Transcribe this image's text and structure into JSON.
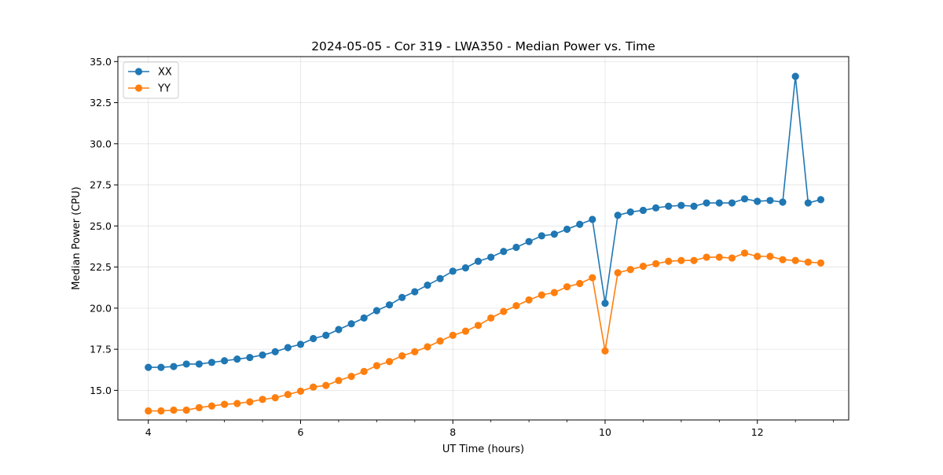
{
  "chart_data": {
    "type": "line",
    "title": "2024-05-05 - Cor 319 - LWA350 - Median Power vs. Time",
    "xlabel": "UT Time (hours)",
    "ylabel": "Median Power (CPU)",
    "xlim": [
      3.6,
      13.2
    ],
    "ylim": [
      13.2,
      35.3
    ],
    "xticks": [
      4,
      6,
      8,
      10,
      12
    ],
    "xtick_labels": [
      "4",
      "6",
      "8",
      "10",
      "12"
    ],
    "yticks": [
      15.0,
      17.5,
      20.0,
      22.5,
      25.0,
      27.5,
      30.0,
      32.5,
      35.0
    ],
    "ytick_labels": [
      "15.0",
      "17.5",
      "20.0",
      "22.5",
      "25.0",
      "27.5",
      "30.0",
      "32.5",
      "35.0"
    ],
    "grid": true,
    "legend_position": "top-left",
    "x": [
      4.0,
      4.167,
      4.333,
      4.5,
      4.667,
      4.833,
      5.0,
      5.167,
      5.333,
      5.5,
      5.667,
      5.833,
      6.0,
      6.167,
      6.333,
      6.5,
      6.667,
      6.833,
      7.0,
      7.167,
      7.333,
      7.5,
      7.667,
      7.833,
      8.0,
      8.167,
      8.333,
      8.5,
      8.667,
      8.833,
      9.0,
      9.167,
      9.333,
      9.5,
      9.667,
      9.833,
      10.0,
      10.167,
      10.333,
      10.5,
      10.667,
      10.833,
      11.0,
      11.167,
      11.333,
      11.5,
      11.667,
      11.833,
      12.0,
      12.167,
      12.333,
      12.5,
      12.667,
      12.833
    ],
    "series": [
      {
        "name": "XX",
        "color": "#1f77b4",
        "values": [
          16.4,
          16.4,
          16.45,
          16.6,
          16.6,
          16.7,
          16.8,
          16.9,
          17.0,
          17.15,
          17.35,
          17.6,
          17.8,
          18.15,
          18.35,
          18.7,
          19.05,
          19.4,
          19.85,
          20.2,
          20.65,
          21.0,
          21.4,
          21.8,
          22.25,
          22.45,
          22.85,
          23.1,
          23.45,
          23.7,
          24.05,
          24.4,
          24.5,
          24.8,
          25.1,
          25.4,
          20.3,
          25.65,
          25.85,
          25.95,
          26.1,
          26.2,
          26.25,
          26.2,
          26.4,
          26.4,
          26.4,
          26.65,
          26.5,
          26.55,
          26.45,
          34.1,
          26.4,
          26.6
        ]
      },
      {
        "name": "YY",
        "color": "#ff7f0e",
        "values": [
          13.75,
          13.75,
          13.8,
          13.8,
          13.95,
          14.05,
          14.15,
          14.2,
          14.3,
          14.45,
          14.55,
          14.75,
          14.95,
          15.2,
          15.3,
          15.6,
          15.85,
          16.15,
          16.5,
          16.75,
          17.1,
          17.35,
          17.65,
          18.0,
          18.35,
          18.6,
          18.95,
          19.4,
          19.8,
          20.15,
          20.5,
          20.8,
          20.95,
          21.3,
          21.5,
          21.85,
          17.4,
          22.15,
          22.35,
          22.55,
          22.7,
          22.85,
          22.9,
          22.9,
          23.1,
          23.1,
          23.05,
          23.35,
          23.15,
          23.15,
          22.95,
          22.9,
          22.8,
          22.75
        ]
      }
    ]
  }
}
